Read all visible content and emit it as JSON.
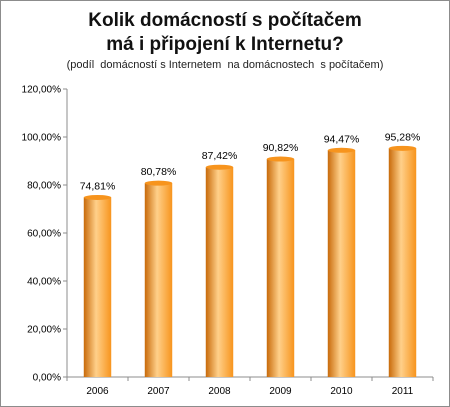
{
  "chart_data": {
    "type": "bar",
    "title_line1": "Kolik domácností s počítačem",
    "title_line2": "má i připojení k Internetu?",
    "subtitle": "(podíl  domácností s Internetem  na domácnostech  s počítačem)",
    "categories": [
      "2006",
      "2007",
      "2008",
      "2009",
      "2010",
      "2011"
    ],
    "values": [
      74.81,
      80.78,
      87.42,
      90.82,
      94.47,
      95.28
    ],
    "value_labels": [
      "74,81%",
      "80,78%",
      "87,42%",
      "90,82%",
      "94,47%",
      "95,28%"
    ],
    "yticks": [
      {
        "value": 0,
        "label": "0,00%"
      },
      {
        "value": 20,
        "label": "20,00%"
      },
      {
        "value": 40,
        "label": "40,00%"
      },
      {
        "value": 60,
        "label": "60,00%"
      },
      {
        "value": 80,
        "label": "80,00%"
      },
      {
        "value": 100,
        "label": "100,00%"
      },
      {
        "value": 120,
        "label": "120,00%"
      }
    ],
    "ylim": [
      0,
      120
    ],
    "grid": false,
    "legend": "none",
    "bar_color": "#f7941d",
    "bar_highlight": "#ffd08a",
    "bar_shadow": "#c86a0a"
  }
}
